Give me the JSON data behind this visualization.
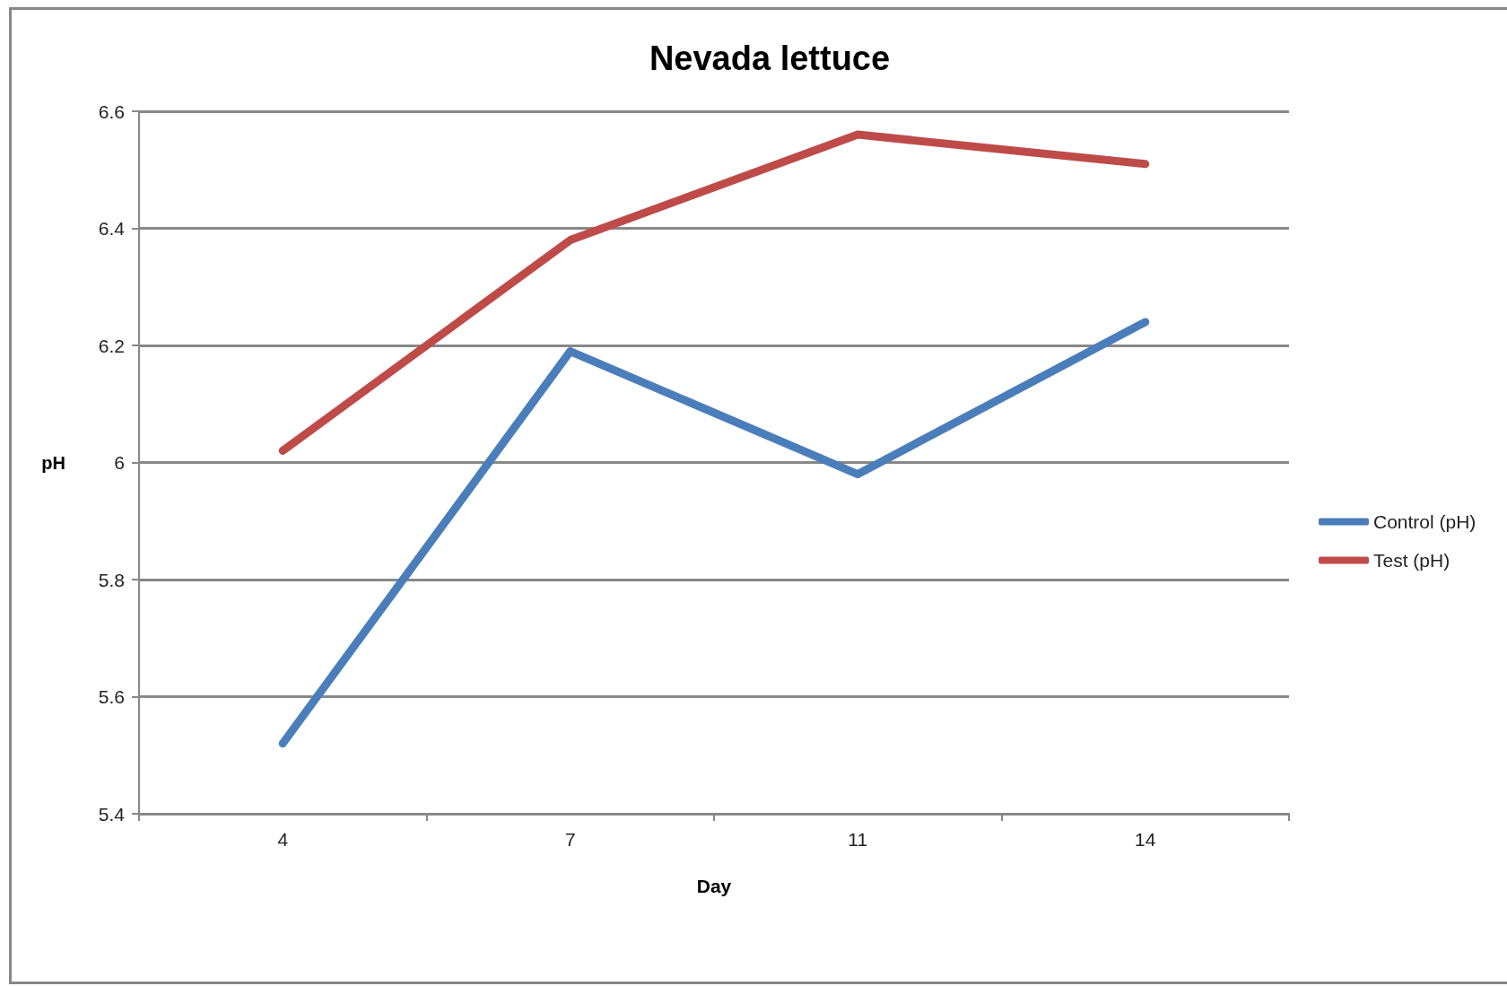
{
  "chart_data": {
    "type": "line",
    "title": "Nevada lettuce",
    "xlabel": "Day",
    "ylabel": "pH",
    "categories": [
      "4",
      "7",
      "11",
      "14"
    ],
    "series": [
      {
        "name": "Control (pH)",
        "color": "#4a7ebb",
        "values": [
          5.52,
          6.19,
          5.98,
          6.24
        ]
      },
      {
        "name": "Test (pH)",
        "color": "#be4b48",
        "values": [
          6.02,
          6.38,
          6.56,
          6.51
        ]
      }
    ],
    "ylim": [
      5.4,
      6.6
    ],
    "yticks": [
      5.4,
      5.6,
      5.8,
      6,
      6.2,
      6.4,
      6.6
    ],
    "grid": "y",
    "legend": "right",
    "marker": "none",
    "line_style": "solid"
  }
}
